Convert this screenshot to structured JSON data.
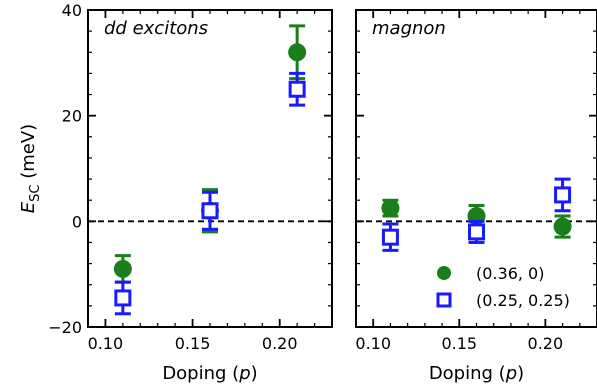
{
  "chart_data": [
    {
      "type": "scatter",
      "panel_label": "dd excitons",
      "xlabel_prefix": "Doping (",
      "xlabel_var": "p",
      "xlabel_suffix": ")",
      "ylabel_main": "E",
      "ylabel_sub": "SC",
      "ylabel_unit": " (meV)",
      "xlim": [
        0.09,
        0.23
      ],
      "ylim": [
        -20,
        40
      ],
      "xticks": [
        0.1,
        0.15,
        0.2
      ],
      "xtick_labels": [
        "0.10",
        "0.15",
        "0.20"
      ],
      "yticks": [
        -20,
        0,
        20,
        40
      ],
      "ytick_labels": [
        "−20",
        "0",
        "20",
        "40"
      ],
      "reference_line": 0,
      "series": [
        {
          "name": "(0.36, 0)",
          "marker": "filled-circle",
          "color": "#1a7f1a",
          "x": [
            0.11,
            0.16,
            0.21
          ],
          "y": [
            -9,
            2,
            32
          ],
          "yerr": [
            2.5,
            4,
            5
          ]
        },
        {
          "name": "(0.25, 0.25)",
          "marker": "open-square",
          "color": "#1a1aff",
          "x": [
            0.11,
            0.16,
            0.21
          ],
          "y": [
            -14.5,
            2,
            25
          ],
          "yerr": [
            3,
            3.5,
            3
          ]
        }
      ]
    },
    {
      "type": "scatter",
      "panel_label": "magnon",
      "xlabel_prefix": "Doping (",
      "xlabel_var": "p",
      "xlabel_suffix": ")",
      "xlim": [
        0.09,
        0.23
      ],
      "ylim": [
        -20,
        40
      ],
      "xticks": [
        0.1,
        0.15,
        0.2
      ],
      "xtick_labels": [
        "0.10",
        "0.15",
        "0.20"
      ],
      "yticks": [
        -20,
        0,
        20,
        40
      ],
      "reference_line": 0,
      "legend_position": "lower-right",
      "series": [
        {
          "name": "(0.36, 0)",
          "marker": "filled-circle",
          "color": "#1a7f1a",
          "x": [
            0.11,
            0.16,
            0.21
          ],
          "y": [
            2.5,
            1,
            -1
          ],
          "yerr": [
            1.5,
            2,
            2
          ]
        },
        {
          "name": "(0.25, 0.25)",
          "marker": "open-square",
          "color": "#1a1aff",
          "x": [
            0.11,
            0.16,
            0.21
          ],
          "y": [
            -3,
            -2,
            5
          ],
          "yerr": [
            2.5,
            2,
            3
          ]
        }
      ]
    }
  ]
}
